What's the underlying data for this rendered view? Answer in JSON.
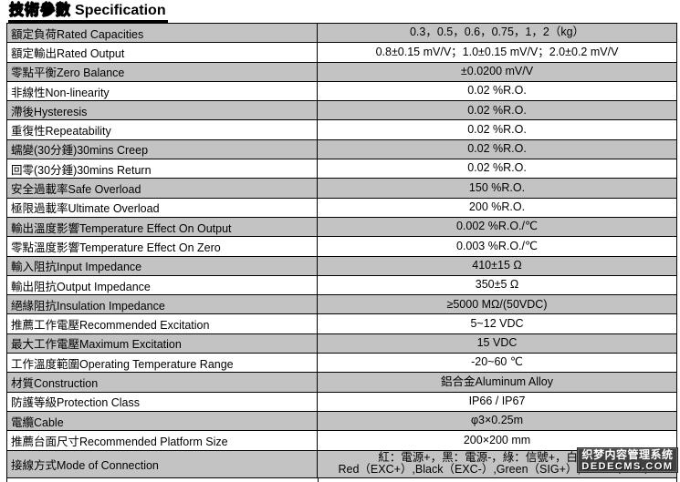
{
  "title": {
    "chinese": "技術參數",
    "english": "Specification"
  },
  "table": {
    "rows": [
      {
        "label": "額定負荷Rated Capacities",
        "value": "0.3，0.5，0.6，0.75，1，2（kg）"
      },
      {
        "label": "額定輸出Rated Output",
        "value": "0.8±0.15 mV/V；1.0±0.15 mV/V；2.0±0.2 mV/V"
      },
      {
        "label": "零點平衡Zero Balance",
        "value": "±0.0200 mV/V"
      },
      {
        "label": "非線性Non-linearity",
        "value": "0.02 %R.O."
      },
      {
        "label": "滯後Hysteresis",
        "value": "0.02 %R.O."
      },
      {
        "label": "重復性Repeatability",
        "value": "0.02 %R.O."
      },
      {
        "label": "蠕變(30分鍾)30mins Creep",
        "value": "0.02 %R.O."
      },
      {
        "label": "回零(30分鍾)30mins Return",
        "value": "0.02 %R.O."
      },
      {
        "label": "安全過載率Safe Overload",
        "value": "150 %R.O."
      },
      {
        "label": "極限過載率Ultimate Overload",
        "value": "200 %R.O."
      },
      {
        "label": "輸出溫度影響Temperature Effect On Output",
        "value": "0.002 %R.O./℃"
      },
      {
        "label": "零點溫度影響Temperature Effect On Zero",
        "value": "0.003 %R.O./℃"
      },
      {
        "label": "輸入阻抗Input Impedance",
        "value": "410±15 Ω"
      },
      {
        "label": "輸出阻抗Output Impedance",
        "value": "350±5 Ω"
      },
      {
        "label": "絕緣阻抗Insulation Impedance",
        "value": "≥5000 MΩ/(50VDC)"
      },
      {
        "label": "推薦工作電壓Recommended Excitation",
        "value": "5~12 VDC"
      },
      {
        "label": "最大工作電壓Maximum Excitation",
        "value": "15 VDC"
      },
      {
        "label": "工作溫度範圍Operating Temperature Range",
        "value": "-20~60 ℃"
      },
      {
        "label": "材質Construction",
        "value": "鋁合金Aluminum Alloy"
      },
      {
        "label": "防護等級Protection Class",
        "value": "IP66 / IP67"
      },
      {
        "label": "電纜Cable",
        "value": "φ3×0.25m"
      },
      {
        "label": "推薦台面尺寸Recommended Platform Size",
        "value": "200×200 mm"
      },
      {
        "label": "接線方式Mode of Connection",
        "value_lines": [
          "紅：電源+，黑：電源-，綠：信號+，白：信號-",
          "Red（EXC+）,Black（EXC-）,Green（SIG+）,White（SIG-）"
        ]
      }
    ]
  },
  "watermark": {
    "line1": "织梦内容管理系统",
    "line2": "DEDECMS.COM"
  },
  "colors": {
    "row_shaded": "#c3c3c3",
    "border": "#000000",
    "watermark_bg": "#404040",
    "watermark_text": "#ffffff"
  }
}
